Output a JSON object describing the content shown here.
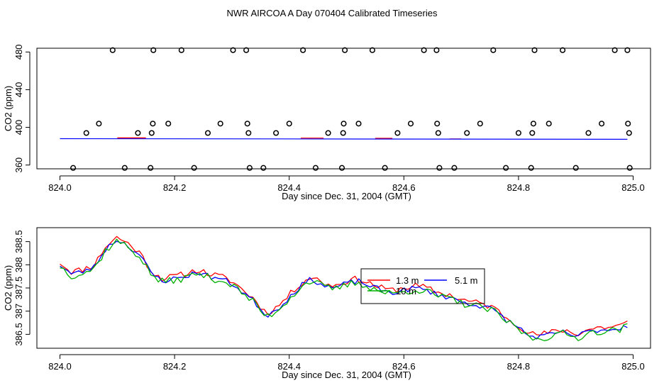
{
  "title": "NWR AIRCOA A  Day 070404  Calibrated Timeseries",
  "colors": {
    "1.3 m": "#ff0000",
    "5.1 m": "#0000ff",
    "10 m": "#00b000",
    "axis": "#000000"
  },
  "chart_data": [
    {
      "type": "scatter",
      "panel": "top",
      "xlabel": "Day since Dec. 31, 2004 (GMT)",
      "ylabel": "CO2 (ppm)",
      "xlim": [
        824.0,
        825.0
      ],
      "ylim": [
        356,
        484
      ],
      "xticks": [
        824.0,
        824.2,
        824.4,
        824.6,
        824.8,
        825.0
      ],
      "xtick_labels": [
        "824.0",
        "824.2",
        "824.4",
        "824.6",
        "824.8",
        "825.0"
      ],
      "yticks": [
        360,
        400,
        440,
        480
      ],
      "ytick_labels": [
        "360",
        "400",
        "440",
        "480"
      ],
      "points": [
        [
          824.023,
          357
        ],
        [
          824.046,
          394
        ],
        [
          824.068,
          404
        ],
        [
          824.092,
          482
        ],
        [
          824.113,
          357
        ],
        [
          824.136,
          394
        ],
        [
          824.158,
          357
        ],
        [
          824.16,
          394
        ],
        [
          824.162,
          404
        ],
        [
          824.163,
          482
        ],
        [
          824.189,
          404
        ],
        [
          824.212,
          482
        ],
        [
          824.234,
          357
        ],
        [
          824.258,
          394
        ],
        [
          824.28,
          404
        ],
        [
          824.302,
          482
        ],
        [
          824.325,
          482
        ],
        [
          824.327,
          404
        ],
        [
          824.329,
          394
        ],
        [
          824.331,
          357
        ],
        [
          824.355,
          357
        ],
        [
          824.377,
          394
        ],
        [
          824.4,
          404
        ],
        [
          824.424,
          482
        ],
        [
          824.446,
          357
        ],
        [
          824.468,
          394
        ],
        [
          824.492,
          357
        ],
        [
          824.494,
          394
        ],
        [
          824.495,
          404
        ],
        [
          824.497,
          482
        ],
        [
          824.521,
          404
        ],
        [
          824.545,
          482
        ],
        [
          824.567,
          357
        ],
        [
          824.589,
          394
        ],
        [
          824.612,
          404
        ],
        [
          824.635,
          482
        ],
        [
          824.657,
          482
        ],
        [
          824.658,
          404
        ],
        [
          824.66,
          394
        ],
        [
          824.662,
          357
        ],
        [
          824.688,
          357
        ],
        [
          824.71,
          394
        ],
        [
          824.733,
          404
        ],
        [
          824.756,
          482
        ],
        [
          824.778,
          357
        ],
        [
          824.8,
          394
        ],
        [
          824.822,
          357
        ],
        [
          824.824,
          394
        ],
        [
          824.826,
          404
        ],
        [
          824.828,
          482
        ],
        [
          824.853,
          404
        ],
        [
          824.877,
          482
        ],
        [
          824.9,
          357
        ],
        [
          824.922,
          394
        ],
        [
          824.945,
          404
        ],
        [
          824.968,
          482
        ],
        [
          824.99,
          482
        ],
        [
          824.991,
          404
        ],
        [
          824.993,
          394
        ],
        [
          824.994,
          357
        ]
      ],
      "series": [
        {
          "name": "1.3 m",
          "color": "#ff0000",
          "x": [
            824.1,
            824.15,
            824.42,
            824.46,
            824.55,
            824.58,
            824.68,
            824.7
          ],
          "y": [
            388.8,
            388.8,
            388.6,
            388.6,
            388.4,
            388.4,
            387.8,
            387.8
          ]
        },
        {
          "name": "5.1 m",
          "color": "#0000ff",
          "x": [
            824.0,
            824.99
          ],
          "y": [
            388.0,
            387.3
          ]
        }
      ]
    },
    {
      "type": "line",
      "panel": "bottom",
      "xlabel": "Day since Dec. 31, 2004 (GMT)",
      "ylabel": "CO2 (ppm)",
      "xlim": [
        824.0,
        825.0
      ],
      "ylim": [
        386.2,
        388.8
      ],
      "xticks": [
        824.0,
        824.2,
        824.4,
        824.6,
        824.8,
        825.0
      ],
      "xtick_labels": [
        "824.0",
        "824.2",
        "824.4",
        "824.6",
        "824.8",
        "825.0"
      ],
      "yticks": [
        386.5,
        387.0,
        387.5,
        388.0,
        388.5
      ],
      "ytick_labels": [
        "386.5",
        "387",
        "387.5",
        "388",
        "388.5"
      ],
      "legend": {
        "labels": [
          "1.3 m",
          "5.1 m",
          "10 m"
        ],
        "position": "center-right"
      },
      "keypoints": [
        [
          824.0,
          388.0
        ],
        [
          824.02,
          387.8
        ],
        [
          824.04,
          387.85
        ],
        [
          824.06,
          387.95
        ],
        [
          824.08,
          388.35
        ],
        [
          824.1,
          388.55
        ],
        [
          824.12,
          388.4
        ],
        [
          824.14,
          388.2
        ],
        [
          824.16,
          387.8
        ],
        [
          824.18,
          387.65
        ],
        [
          824.2,
          387.7
        ],
        [
          824.22,
          387.75
        ],
        [
          824.24,
          387.85
        ],
        [
          824.26,
          387.75
        ],
        [
          824.28,
          387.7
        ],
        [
          824.3,
          387.6
        ],
        [
          824.32,
          387.4
        ],
        [
          824.34,
          387.2
        ],
        [
          824.36,
          386.9
        ],
        [
          824.38,
          387.05
        ],
        [
          824.4,
          387.3
        ],
        [
          824.42,
          387.55
        ],
        [
          824.44,
          387.7
        ],
        [
          824.46,
          387.55
        ],
        [
          824.48,
          387.5
        ],
        [
          824.5,
          387.6
        ],
        [
          824.52,
          387.65
        ],
        [
          824.54,
          387.55
        ],
        [
          824.56,
          387.45
        ],
        [
          824.58,
          387.4
        ],
        [
          824.6,
          387.45
        ],
        [
          824.62,
          387.5
        ],
        [
          824.64,
          387.45
        ],
        [
          824.66,
          387.35
        ],
        [
          824.68,
          387.3
        ],
        [
          824.7,
          387.2
        ],
        [
          824.72,
          387.15
        ],
        [
          824.74,
          387.1
        ],
        [
          824.76,
          387.0
        ],
        [
          824.78,
          386.8
        ],
        [
          824.8,
          386.65
        ],
        [
          824.82,
          386.45
        ],
        [
          824.84,
          386.45
        ],
        [
          824.86,
          386.5
        ],
        [
          824.88,
          386.55
        ],
        [
          824.9,
          386.45
        ],
        [
          824.92,
          386.55
        ],
        [
          824.94,
          386.6
        ],
        [
          824.96,
          386.6
        ],
        [
          824.98,
          386.65
        ],
        [
          824.99,
          386.7
        ]
      ],
      "series": [
        {
          "name": "1.3 m",
          "color": "#ff0000",
          "offset": 0.05,
          "noise": 0.07,
          "seed": 11
        },
        {
          "name": "5.1 m",
          "color": "#0000ff",
          "offset": 0.0,
          "noise": 0.06,
          "seed": 23
        },
        {
          "name": "10 m",
          "color": "#00b000",
          "offset": -0.03,
          "noise": 0.08,
          "seed": 37
        }
      ]
    }
  ]
}
